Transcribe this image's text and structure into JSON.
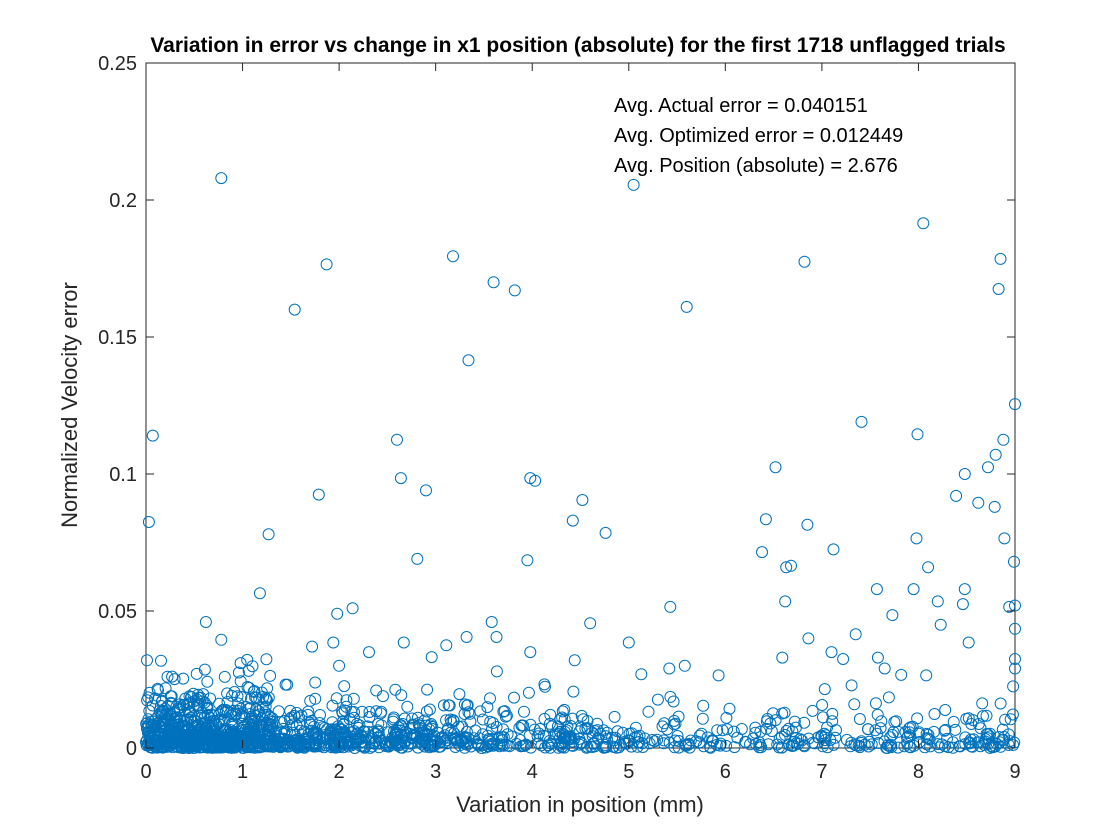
{
  "chart_data": {
    "type": "scatter",
    "title": "Variation in error vs change in x1 position (absolute) for the first 1718 unflagged trials",
    "xlabel": "Variation in position (mm)",
    "ylabel": "Normalized Velocity error",
    "xlim": [
      0,
      9
    ],
    "ylim": [
      0,
      0.25
    ],
    "xticks": [
      0,
      1,
      2,
      3,
      4,
      5,
      6,
      7,
      8,
      9
    ],
    "xtick_labels": [
      "0",
      "1",
      "2",
      "3",
      "4",
      "5",
      "6",
      "7",
      "8",
      "9"
    ],
    "yticks": [
      0,
      0.05,
      0.1,
      0.15,
      0.2,
      0.25
    ],
    "ytick_labels": [
      "0",
      "0.05",
      "0.1",
      "0.15",
      "0.2",
      "0.25"
    ],
    "grid": false,
    "marker": "circle-open",
    "color": "#0072BD",
    "annotations": [
      "Avg. Actual error = 0.040151",
      "Avg. Optimized error = 0.012449",
      "Avg. Position (absolute) = 2.676"
    ],
    "points_note": "outliers read off the figure; dense low-error cluster is summarized",
    "outliers": [
      [
        0.78,
        0.208
      ],
      [
        5.05,
        0.2055
      ],
      [
        8.05,
        0.1915
      ],
      [
        3.18,
        0.1795
      ],
      [
        1.87,
        0.1765
      ],
      [
        6.82,
        0.1775
      ],
      [
        8.85,
        0.1785
      ],
      [
        3.6,
        0.17
      ],
      [
        3.82,
        0.167
      ],
      [
        8.83,
        0.1675
      ],
      [
        5.6,
        0.161
      ],
      [
        1.54,
        0.16
      ],
      [
        3.34,
        0.1415
      ],
      [
        9.0,
        0.1255
      ],
      [
        7.41,
        0.119
      ],
      [
        0.07,
        0.114
      ],
      [
        7.99,
        0.1145
      ],
      [
        2.6,
        0.1125
      ],
      [
        8.88,
        0.1125
      ],
      [
        8.8,
        0.107
      ],
      [
        8.72,
        0.1025
      ],
      [
        6.52,
        0.1025
      ],
      [
        8.48,
        0.1
      ],
      [
        3.98,
        0.0985
      ],
      [
        4.03,
        0.0975
      ],
      [
        2.64,
        0.0985
      ],
      [
        2.9,
        0.094
      ],
      [
        1.79,
        0.0925
      ],
      [
        8.39,
        0.092
      ],
      [
        4.52,
        0.0905
      ],
      [
        8.62,
        0.0895
      ],
      [
        8.79,
        0.088
      ],
      [
        6.42,
        0.0835
      ],
      [
        4.42,
        0.083
      ],
      [
        0.03,
        0.0825
      ],
      [
        6.85,
        0.0815
      ],
      [
        4.76,
        0.0785
      ],
      [
        1.27,
        0.078
      ],
      [
        7.98,
        0.0765
      ],
      [
        8.89,
        0.0765
      ],
      [
        7.12,
        0.0725
      ],
      [
        6.38,
        0.0715
      ],
      [
        2.81,
        0.069
      ],
      [
        3.95,
        0.0685
      ],
      [
        8.99,
        0.068
      ],
      [
        6.68,
        0.0665
      ],
      [
        6.63,
        0.066
      ],
      [
        8.1,
        0.066
      ],
      [
        7.57,
        0.058
      ],
      [
        7.95,
        0.058
      ],
      [
        8.48,
        0.058
      ],
      [
        1.18,
        0.0565
      ],
      [
        6.62,
        0.0535
      ],
      [
        8.2,
        0.0535
      ],
      [
        8.46,
        0.0525
      ],
      [
        8.94,
        0.0515
      ],
      [
        9.0,
        0.052
      ],
      [
        5.43,
        0.0515
      ],
      [
        2.14,
        0.051
      ],
      [
        1.98,
        0.049
      ],
      [
        7.73,
        0.0485
      ],
      [
        0.62,
        0.046
      ],
      [
        3.58,
        0.046
      ],
      [
        4.6,
        0.0455
      ],
      [
        8.23,
        0.045
      ],
      [
        9.0,
        0.0435
      ],
      [
        7.35,
        0.0415
      ],
      [
        3.32,
        0.0405
      ],
      [
        3.63,
        0.0405
      ],
      [
        0.78,
        0.0395
      ],
      [
        6.86,
        0.04
      ],
      [
        8.52,
        0.0385
      ],
      [
        1.94,
        0.0385
      ],
      [
        2.67,
        0.0385
      ],
      [
        5.0,
        0.0385
      ],
      [
        3.11,
        0.0375
      ],
      [
        1.72,
        0.037
      ],
      [
        3.98,
        0.035
      ],
      [
        7.1,
        0.035
      ],
      [
        2.31,
        0.035
      ],
      [
        7.22,
        0.0325
      ],
      [
        9.0,
        0.0325
      ],
      [
        6.59,
        0.033
      ],
      [
        7.58,
        0.033
      ],
      [
        0.01,
        0.032
      ],
      [
        4.44,
        0.032
      ],
      [
        0.98,
        0.031
      ],
      [
        2.0,
        0.03
      ],
      [
        5.58,
        0.03
      ],
      [
        7.65,
        0.029
      ],
      [
        9.0,
        0.029
      ],
      [
        8.08,
        0.0265
      ],
      [
        5.93,
        0.0265
      ],
      [
        7.03,
        0.0215
      ],
      [
        8.98,
        0.0225
      ]
    ]
  }
}
